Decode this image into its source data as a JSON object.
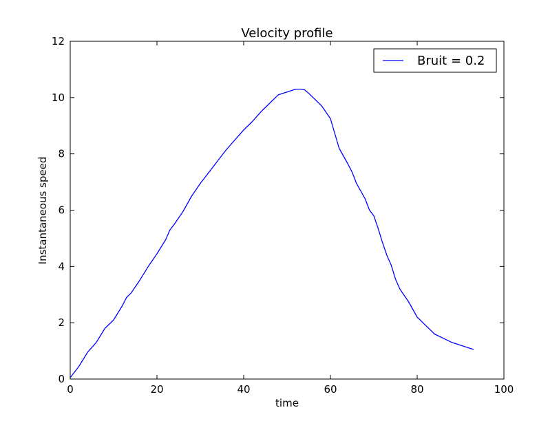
{
  "chart_data": {
    "type": "line",
    "title": "Velocity profile",
    "xlabel": "time",
    "ylabel": "Instantaneous speed",
    "xlim": [
      0,
      100
    ],
    "ylim": [
      0,
      12
    ],
    "xticks": [
      0,
      20,
      40,
      60,
      80,
      100
    ],
    "yticks": [
      0,
      2,
      4,
      6,
      8,
      10,
      12
    ],
    "xtick_labels": [
      "0",
      "20",
      "40",
      "60",
      "80",
      "100"
    ],
    "ytick_labels": [
      "0",
      "2",
      "4",
      "6",
      "8",
      "10",
      "12"
    ],
    "grid": false,
    "legend_position": "top-right",
    "series": [
      {
        "name": "Bruit = 0.2",
        "color": "#0000ff",
        "x": [
          0,
          2,
          4,
          6,
          8,
          10,
          12,
          13,
          14,
          16,
          18,
          20,
          22,
          23,
          24,
          26,
          28,
          30,
          32,
          34,
          36,
          38,
          40,
          42,
          44,
          46,
          48,
          50,
          51,
          52,
          53,
          54,
          55,
          56,
          58,
          60,
          62,
          64,
          65,
          66,
          68,
          69,
          70,
          71,
          72,
          73,
          74,
          75,
          76,
          78,
          80,
          82,
          84,
          86,
          88,
          90,
          93
        ],
        "y": [
          0.05,
          0.45,
          0.95,
          1.3,
          1.8,
          2.1,
          2.6,
          2.9,
          3.05,
          3.5,
          4.0,
          4.45,
          4.95,
          5.3,
          5.5,
          5.95,
          6.5,
          6.95,
          7.35,
          7.75,
          8.15,
          8.5,
          8.85,
          9.15,
          9.5,
          9.8,
          10.1,
          10.2,
          10.25,
          10.3,
          10.3,
          10.28,
          10.15,
          10.0,
          9.7,
          9.25,
          8.2,
          7.65,
          7.35,
          6.95,
          6.4,
          6.0,
          5.8,
          5.35,
          4.85,
          4.4,
          4.05,
          3.55,
          3.2,
          2.75,
          2.2,
          1.9,
          1.6,
          1.45,
          1.3,
          1.2,
          1.05
        ]
      }
    ]
  }
}
